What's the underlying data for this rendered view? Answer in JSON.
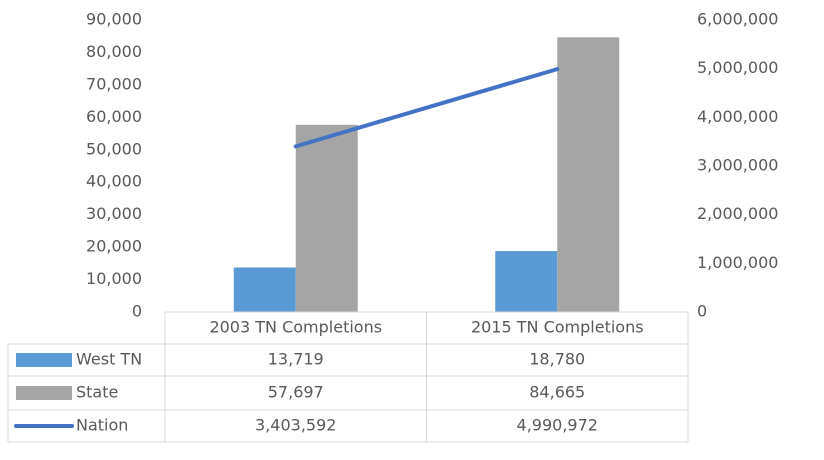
{
  "chart_data": {
    "type": "bar",
    "categories": [
      "2003 TN Completions",
      "2015 TN Completions"
    ],
    "series": [
      {
        "name": "West TN",
        "color": "#5b9bd5",
        "type": "bar",
        "values": [
          13719,
          18780
        ],
        "value_labels": [
          "13,719",
          "18,780"
        ]
      },
      {
        "name": "State",
        "color": "#a5a5a5",
        "type": "bar",
        "values": [
          57697,
          84665
        ],
        "value_labels": [
          "57,697",
          "84,665"
        ]
      },
      {
        "name": "Nation",
        "color": "#4472c4",
        "type": "line",
        "axis": "y2",
        "values": [
          3403592,
          4990972
        ],
        "value_labels": [
          "3,403,592",
          "4,990,972"
        ]
      }
    ],
    "ylim": [
      0,
      90000
    ],
    "yticks": [
      0,
      {
        "value": 10000,
        "label": "10,000"
      },
      {
        "value": 20000,
        "label": "20,000"
      },
      {
        "value": 30000,
        "label": "30,000"
      },
      {
        "value": 40000,
        "label": "40,000"
      },
      {
        "value": 50000,
        "label": "50,000"
      },
      {
        "value": 60000,
        "label": "60,000"
      },
      {
        "value": 70000,
        "label": "70,000"
      },
      {
        "value": 80000,
        "label": "80,000"
      },
      {
        "value": 90000,
        "label": "90,000"
      }
    ],
    "y2lim": [
      0,
      6000000
    ],
    "y2ticks": [
      0,
      {
        "value": 1000000,
        "label": "1,000,000"
      },
      {
        "value": 2000000,
        "label": "2,000,000"
      },
      {
        "value": 3000000,
        "label": "3,000,000"
      },
      {
        "value": 4000000,
        "label": "4,000,000"
      },
      {
        "value": 5000000,
        "label": "5,000,000"
      },
      {
        "value": 6000000,
        "label": "6,000,000"
      }
    ],
    "grid": false,
    "data_table": true
  }
}
